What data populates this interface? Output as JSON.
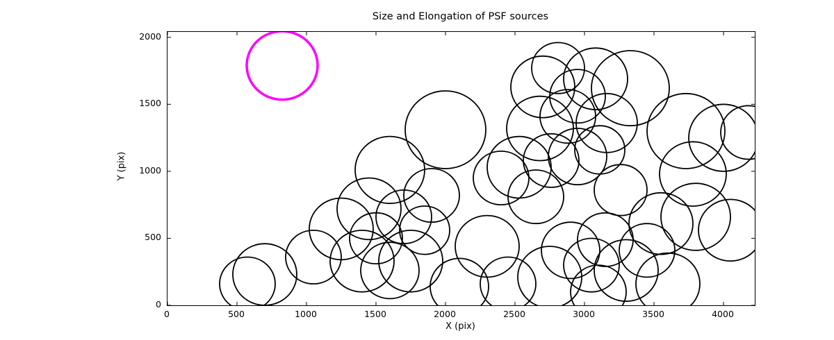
{
  "title": "Size and Elongation of PSF sources",
  "chart_data": {
    "type": "scatter",
    "title": "Size and Elongation of PSF sources",
    "xlabel": "X (pix)",
    "ylabel": "Y (pix)",
    "xlim": [
      0,
      4225
    ],
    "ylim": [
      0,
      2040
    ],
    "xticks": [
      0,
      500,
      1000,
      1500,
      2000,
      2500,
      3000,
      3500,
      4000
    ],
    "yticks": [
      0,
      500,
      1000,
      1500,
      2000
    ],
    "grid": false,
    "legend_position": "none",
    "marker": "open-circle",
    "circle_format": "[x_pix, y_pix, radius_pix]",
    "colors": {
      "source_stroke": "#000000",
      "highlight_stroke": "#ff00ff",
      "background": "#ffffff",
      "frame": "#000000"
    },
    "highlight_circle": {
      "x": 825,
      "y": 1790,
      "r": 255,
      "color": "#ff00ff"
    },
    "circles": [
      [
        2000,
        1310,
        290
      ],
      [
        2700,
        1630,
        230
      ],
      [
        2810,
        1770,
        190
      ],
      [
        3080,
        1690,
        230
      ],
      [
        3330,
        1620,
        280
      ],
      [
        2680,
        1320,
        240
      ],
      [
        2880,
        1410,
        200
      ],
      [
        2950,
        1560,
        200
      ],
      [
        3160,
        1360,
        220
      ],
      [
        3730,
        1300,
        280
      ],
      [
        4000,
        1250,
        250
      ],
      [
        4180,
        1290,
        200
      ],
      [
        3780,
        980,
        240
      ],
      [
        2530,
        1030,
        230
      ],
      [
        2760,
        1080,
        200
      ],
      [
        2950,
        1110,
        210
      ],
      [
        3110,
        1160,
        180
      ],
      [
        2400,
        950,
        200
      ],
      [
        1600,
        1010,
        250
      ],
      [
        1450,
        720,
        230
      ],
      [
        1250,
        570,
        230
      ],
      [
        1700,
        660,
        200
      ],
      [
        1900,
        820,
        200
      ],
      [
        2650,
        810,
        200
      ],
      [
        3260,
        860,
        190
      ],
      [
        700,
        230,
        230
      ],
      [
        575,
        160,
        200
      ],
      [
        1050,
        360,
        200
      ],
      [
        1400,
        330,
        230
      ],
      [
        1500,
        500,
        190
      ],
      [
        1600,
        260,
        210
      ],
      [
        1750,
        330,
        230
      ],
      [
        1850,
        560,
        180
      ],
      [
        2100,
        140,
        210
      ],
      [
        2300,
        440,
        230
      ],
      [
        2450,
        160,
        200
      ],
      [
        2750,
        210,
        230
      ],
      [
        2900,
        410,
        210
      ],
      [
        3050,
        300,
        200
      ],
      [
        3100,
        100,
        200
      ],
      [
        3150,
        490,
        200
      ],
      [
        3300,
        260,
        230
      ],
      [
        3450,
        410,
        200
      ],
      [
        3550,
        610,
        230
      ],
      [
        3600,
        160,
        230
      ],
      [
        3800,
        660,
        250
      ],
      [
        4050,
        560,
        230
      ]
    ]
  }
}
